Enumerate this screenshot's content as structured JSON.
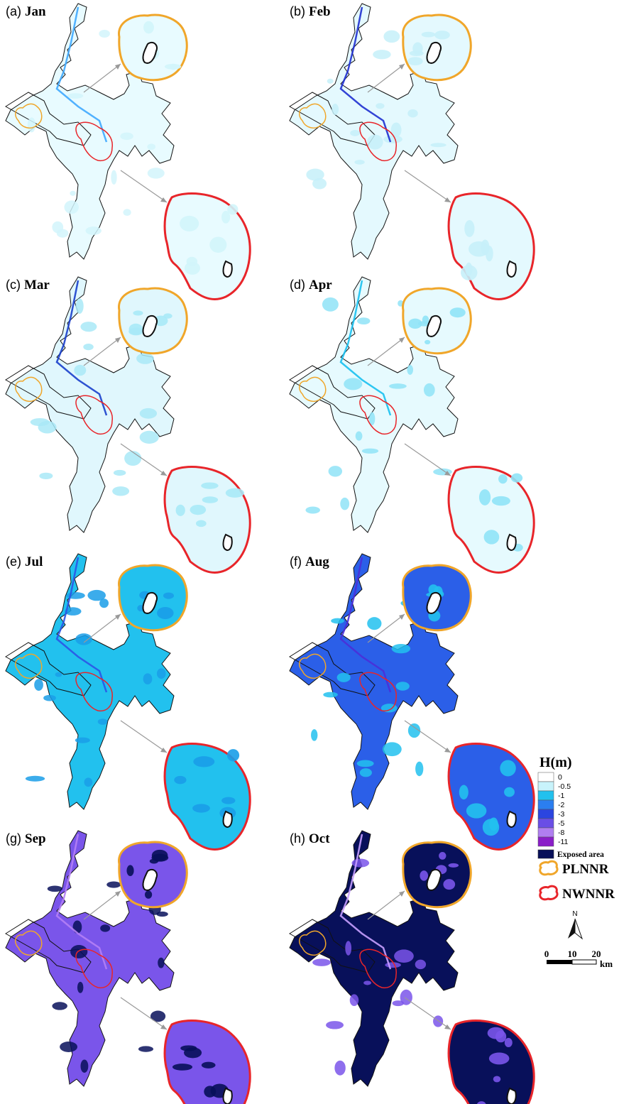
{
  "panels": [
    {
      "letter": "(a)",
      "month": "Jan",
      "palette": [
        "#e8fbff",
        "#d2f5fb",
        "#ffffff"
      ],
      "accent": "#3fa9ff"
    },
    {
      "letter": "(b)",
      "month": "Feb",
      "palette": [
        "#e4f9fe",
        "#c6f0f9",
        "#ffffff"
      ],
      "accent": "#1e2fd0"
    },
    {
      "letter": "(c)",
      "month": "Mar",
      "palette": [
        "#e0f7fd",
        "#a9e9f7",
        "#ffffff"
      ],
      "accent": "#1a3fcc"
    },
    {
      "letter": "(d)",
      "month": "Apr",
      "palette": [
        "#e6fafe",
        "#8fe3f7",
        "#ffffff"
      ],
      "accent": "#18c0f0"
    },
    {
      "letter": "(e)",
      "month": "Jul",
      "palette": [
        "#22c1ee",
        "#1a9de8",
        "#ffffff"
      ],
      "accent": "#2b55e6"
    },
    {
      "letter": "(f)",
      "month": "Aug",
      "palette": [
        "#2b5fe8",
        "#22c1ee",
        "#ffffff"
      ],
      "accent": "#4a2fd8"
    },
    {
      "letter": "(g)",
      "month": "Sep",
      "palette": [
        "#7a55ea",
        "#08105a",
        "#ffffff"
      ],
      "accent": "#b480f5"
    },
    {
      "letter": "(h)",
      "month": "Oct",
      "palette": [
        "#08105a",
        "#7a55ea",
        "#ffffff"
      ],
      "accent": "#c8a0ff"
    }
  ],
  "legend": {
    "title": "H(m)",
    "classes": [
      {
        "label": "0",
        "color": "#ffffff"
      },
      {
        "label": "-0.5",
        "color": "#c8f3fb"
      },
      {
        "label": "-1",
        "color": "#22c1ee"
      },
      {
        "label": "-2",
        "color": "#2b7ef0"
      },
      {
        "label": "-3",
        "color": "#2b45e0"
      },
      {
        "label": "-5",
        "color": "#6a4ee6"
      },
      {
        "label": "-8",
        "color": "#b07ef0"
      },
      {
        "label": "-11",
        "color": "#8a1ec8"
      }
    ],
    "exposed": {
      "label": "Exposed area",
      "color": "#08105a"
    }
  },
  "reserves": [
    {
      "label": "PLNNR",
      "color": "#f0a62a"
    },
    {
      "label": "NWNNR",
      "color": "#e8252a"
    }
  ],
  "north_arrow": {
    "label": "N"
  },
  "scale_bar": {
    "ticks": [
      "0",
      "10",
      "20"
    ],
    "unit": "km"
  }
}
